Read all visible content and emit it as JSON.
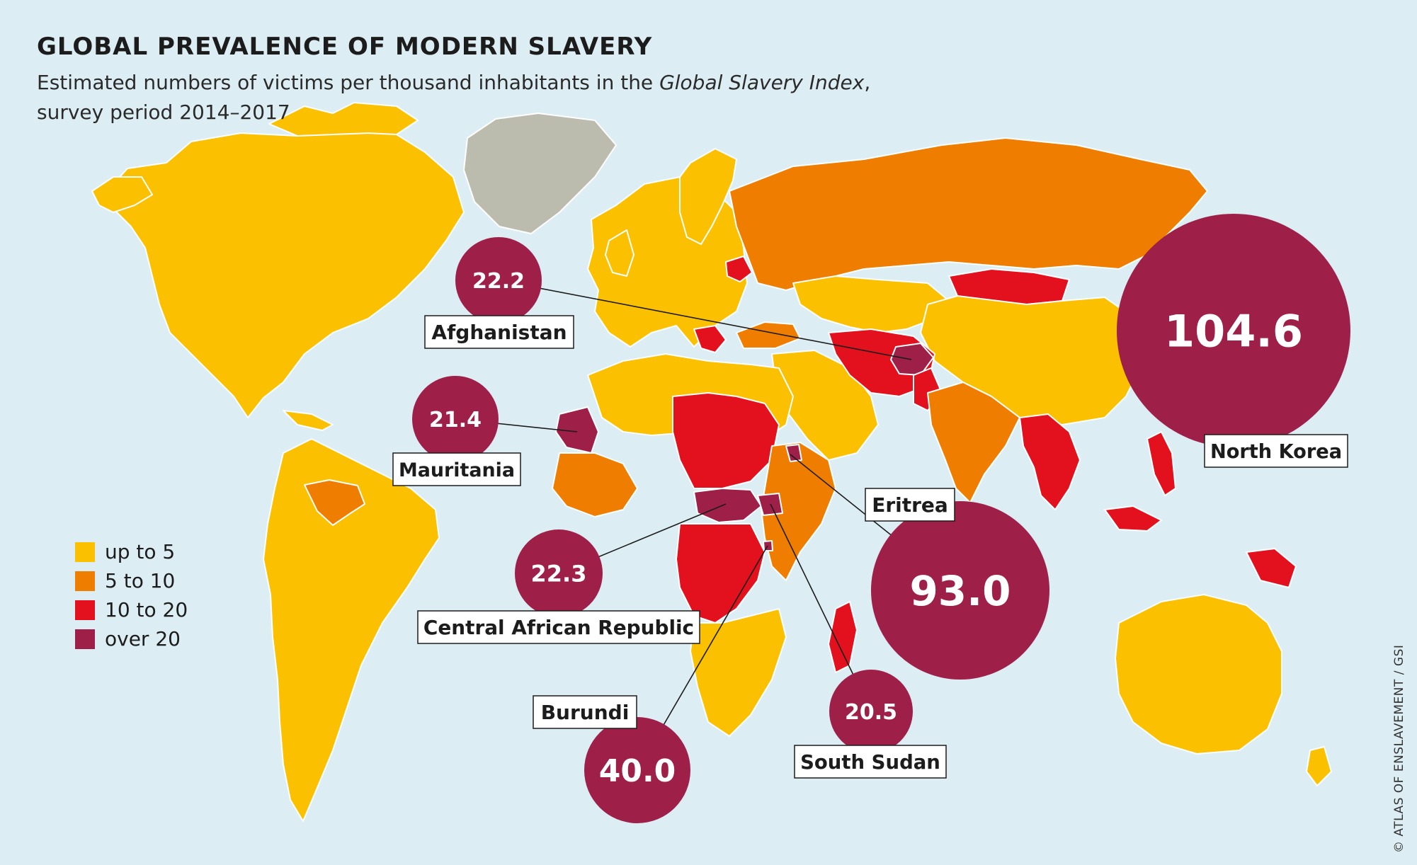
{
  "title": "GLOBAL PREVALENCE OF MODERN SLAVERY",
  "subtitle": {
    "before": "Estimated numbers of victims per thousand inhabitants in the ",
    "italic": "Global Slavery Index",
    "after": ",",
    "line2": "survey period 2014–2017"
  },
  "legend": [
    {
      "label": "up to 5",
      "color": "#fbc000"
    },
    {
      "label": "5 to 10",
      "color": "#ef7d00"
    },
    {
      "label": "10 to 20",
      "color": "#e2111d"
    },
    {
      "label": "over 20",
      "color": "#9e1f48"
    }
  ],
  "colors": {
    "ocean": "#dcedf3",
    "no_data": "#bcbcae",
    "bubble": "#9e1f48",
    "bubble_text": "#ffffff",
    "leader": "#1c1c1c",
    "label_bg": "#ffffff",
    "label_border": "#1c1c1c",
    "border": "#ffffff"
  },
  "callouts": [
    {
      "country": "North Korea",
      "value": "104.6"
    },
    {
      "country": "Eritrea",
      "value": "93.0"
    },
    {
      "country": "Burundi",
      "value": "40.0"
    },
    {
      "country": "Central African Republic",
      "value": "22.3"
    },
    {
      "country": "Afghanistan",
      "value": "22.2"
    },
    {
      "country": "Mauritania",
      "value": "21.4"
    },
    {
      "country": "South Sudan",
      "value": "20.5"
    }
  ],
  "credit": "© ATLAS OF ENSLAVEMENT / GSI"
}
